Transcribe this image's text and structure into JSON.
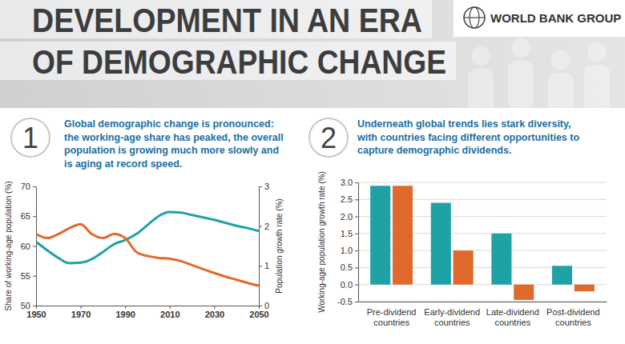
{
  "header": {
    "title": [
      "DEVELOPMENT IN AN ERA",
      "OF DEMOGRAPHIC CHANGE"
    ],
    "logo": "WORLD BANK GROUP"
  },
  "panels": [
    {
      "number": 1,
      "text": [
        "Global demographic change is pronounced:",
        "the working-age share has peaked, the overall",
        "population is growing much more slowly and",
        "is aging at record speed."
      ]
    },
    {
      "number": 2,
      "text": [
        "Underneath global trends lies stark diversity,",
        "with countries facing different opportunities to",
        "capture demographic dividends."
      ]
    }
  ],
  "chart_data": [
    {
      "type": "line",
      "x": [
        1950,
        1955,
        1960,
        1965,
        1970,
        1975,
        1980,
        1985,
        1990,
        1995,
        2000,
        2005,
        2010,
        2015,
        2020,
        2025,
        2030,
        2035,
        2040,
        2045,
        2050
      ],
      "xlim": [
        1950,
        2050
      ],
      "xticks": [
        1950,
        1970,
        1990,
        2010,
        2030,
        2050
      ],
      "ylim": [
        50,
        70
      ],
      "yticks": [
        50,
        55,
        60,
        65,
        70
      ],
      "y2lim": [
        0,
        3
      ],
      "y2ticks": [
        0,
        1,
        2,
        3
      ],
      "y_label": "Share of working-age population (%)",
      "y2_label": "Population growth rate (%)",
      "series": [
        {
          "color": "#1fa2a6",
          "values": [
            60.7,
            59.3,
            58.0,
            57.1,
            57.2,
            57.8,
            59.0,
            60.3,
            61.0,
            62.0,
            63.5,
            65.0,
            65.7,
            65.6,
            65.2,
            64.8,
            64.4,
            63.9,
            63.4,
            63.0,
            62.5
          ]
        },
        {
          "color": "#e06a2c",
          "axis": "y2",
          "values": [
            1.8,
            1.7,
            1.8,
            1.95,
            2.05,
            1.8,
            1.7,
            1.8,
            1.7,
            1.35,
            1.25,
            1.2,
            1.18,
            1.12,
            1.02,
            0.92,
            0.82,
            0.73,
            0.65,
            0.57,
            0.5
          ]
        }
      ]
    },
    {
      "type": "bar",
      "categories": [
        "Pre-dividend countries",
        "Early-dividend countries",
        "Late-dividend countries",
        "Post-dividend countries"
      ],
      "ylim": [
        -0.5,
        3
      ],
      "yticks": [
        -0.5,
        {
          "value": 0,
          "label": "0.0"
        },
        0.5,
        {
          "value": 1,
          "label": "1.0"
        },
        1.5,
        {
          "value": 2,
          "label": "2.0"
        },
        2.5,
        {
          "value": 3,
          "label": "3.0"
        }
      ],
      "y_label": "Working-age population growth rate (%)",
      "grid": true,
      "series": [
        {
          "color": "#1fa2a6",
          "values": [
            2.9,
            2.4,
            1.5,
            0.55
          ]
        },
        {
          "color": "#e06a2c",
          "values": [
            2.9,
            1.0,
            -0.45,
            -0.2
          ]
        }
      ]
    }
  ]
}
